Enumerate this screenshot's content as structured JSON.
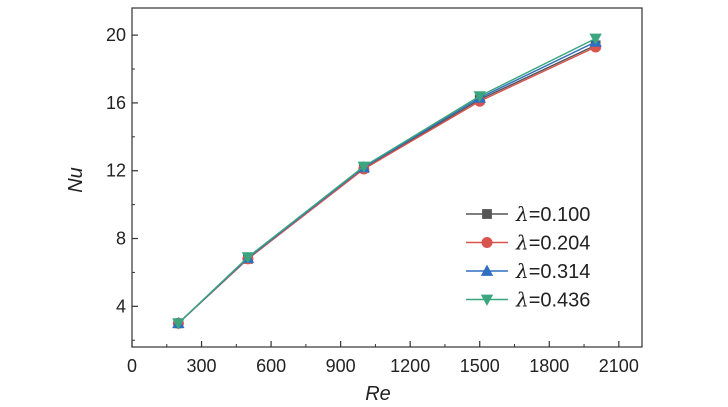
{
  "chart_data": {
    "type": "line",
    "xlabel": "Re",
    "ylabel": "Nu",
    "xlim": [
      0,
      2200
    ],
    "ylim": [
      1.6,
      21.6
    ],
    "xticks": [
      0,
      300,
      600,
      900,
      1200,
      1500,
      1800,
      2100
    ],
    "yticks": [
      4,
      8,
      12,
      16,
      20
    ],
    "x": [
      200,
      500,
      1000,
      1500,
      2000
    ],
    "series": [
      {
        "name": "=0.100",
        "symbol": "λ",
        "marker": "square",
        "color": "#555555",
        "values": [
          3.0,
          6.8,
          12.15,
          16.2,
          19.4
        ]
      },
      {
        "name": "=0.204",
        "symbol": "λ",
        "marker": "circle",
        "color": "#d9534f",
        "values": [
          3.0,
          6.8,
          12.1,
          16.1,
          19.3
        ]
      },
      {
        "name": "=0.314",
        "symbol": "λ",
        "marker": "triangle-up",
        "color": "#2f6fc1",
        "values": [
          3.0,
          6.85,
          12.2,
          16.3,
          19.6
        ]
      },
      {
        "name": "=0.436",
        "symbol": "λ",
        "marker": "triangle-down",
        "color": "#3aa57e",
        "values": [
          3.0,
          6.9,
          12.25,
          16.4,
          19.8
        ]
      }
    ],
    "legend_position": "lower-right",
    "grid": false
  }
}
